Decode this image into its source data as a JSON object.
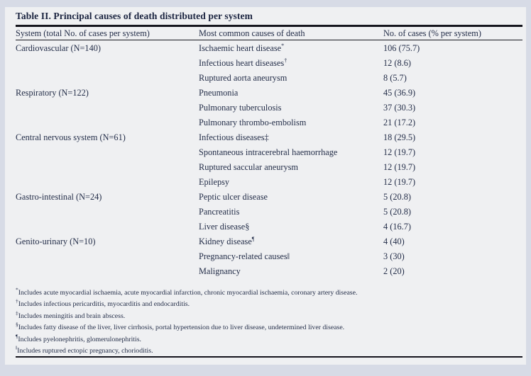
{
  "title": "Table II. Principal causes of death distributed per system",
  "columns": {
    "system": "System (total No. of cases per system)",
    "cause": "Most common causes of death",
    "cases": "No. of cases (% per system)"
  },
  "table": {
    "rows": [
      {
        "system": "Cardiovascular (N=140)",
        "cause": "Ischaemic heart disease",
        "sup_marker": "*",
        "cases": "106 (75.7)"
      },
      {
        "system": "",
        "cause": "Infectious heart diseases",
        "sup_marker": "†",
        "cases": "12 (8.6)"
      },
      {
        "system": "",
        "cause": "Ruptured aorta aneurysm",
        "cases": "8 (5.7)"
      },
      {
        "system": "Respiratory (N=122)",
        "cause": "Pneumonia",
        "cases": "45 (36.9)"
      },
      {
        "system": "",
        "cause": "Pulmonary tuberculosis",
        "cases": "37 (30.3)"
      },
      {
        "system": "",
        "cause": "Pulmonary thrombo-embolism",
        "cases": "21 (17.2)"
      },
      {
        "system": "Central nervous system (N=61)",
        "cause": "Infectious diseases",
        "inline_marker": "‡",
        "cases": "18 (29.5)"
      },
      {
        "system": "",
        "cause": "Spontaneous intracerebral haemorrhage",
        "cases": "12 (19.7)"
      },
      {
        "system": "",
        "cause": "Ruptured saccular aneurysm",
        "cases": "12 (19.7)"
      },
      {
        "system": "",
        "cause": "Epilepsy",
        "cases": "12 (19.7)"
      },
      {
        "system": "Gastro-intestinal (N=24)",
        "cause": "Peptic ulcer disease",
        "cases": "5 (20.8)"
      },
      {
        "system": "",
        "cause": "Pancreatitis",
        "cases": "5 (20.8)"
      },
      {
        "system": "",
        "cause": "Liver disease",
        "inline_marker": "§",
        "cases": "4 (16.7)"
      },
      {
        "system": "Genito-urinary (N=10)",
        "cause": "Kidney disease",
        "sup_marker": "¶",
        "cases": "4 (40)"
      },
      {
        "system": "",
        "cause": "Pregnancy-related causes",
        "inline_marker": "‖",
        "cases": "3 (30)"
      },
      {
        "system": "",
        "cause": "Malignancy",
        "cases": "2 (20)"
      }
    ]
  },
  "footnotes": [
    {
      "marker": "*",
      "text": "Includes acute myocardial ischaemia, acute myocardial infarction, chronic myocardial ischaemia, coronary artery disease."
    },
    {
      "marker": "†",
      "text": "Includes infectious pericarditis, myocarditis and endocarditis."
    },
    {
      "marker": "‡",
      "text": "Includes meningitis and brain abscess."
    },
    {
      "marker": "§",
      "text": "Includes fatty disease of the liver, liver cirrhosis, portal hypertension due to liver disease, undetermined liver disease."
    },
    {
      "marker": "¶",
      "text": "Includes pyelonephritis, glomerulonephritis."
    },
    {
      "marker": "‖",
      "text": "Includes ruptured ectopic pregnancy, chorioditis."
    }
  ],
  "colors": {
    "page_background": "#d7dbe6",
    "panel_background": "#eff0f2",
    "text": "#242e49",
    "rule": "#15151d"
  }
}
